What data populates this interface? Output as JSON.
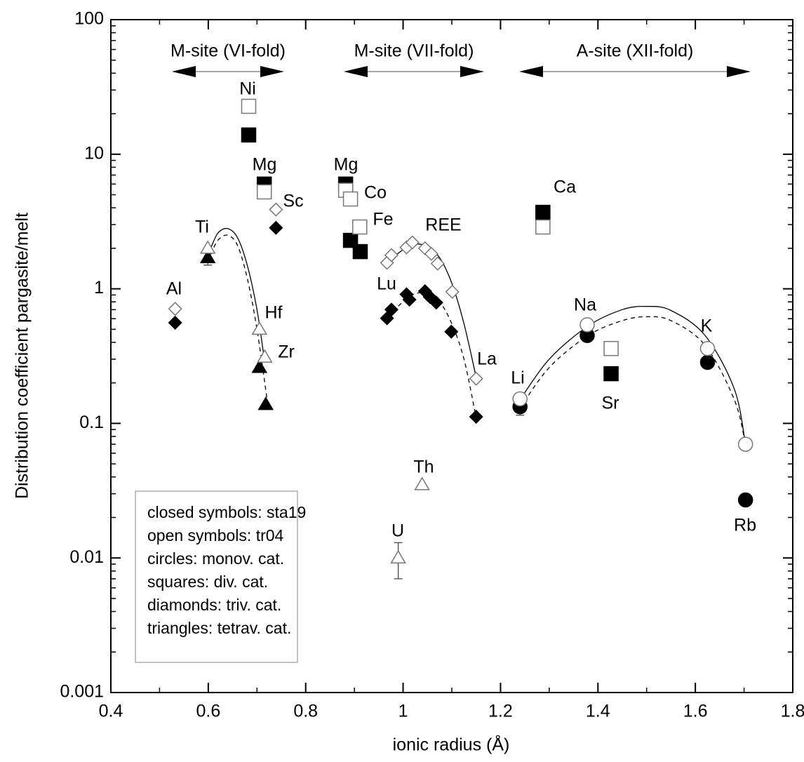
{
  "chart_data": {
    "type": "scatter",
    "x_label": "ionic radius (Å)",
    "y_label": "Distribution coefficient pargasite/melt",
    "xlim": [
      0.4,
      1.8
    ],
    "xticks": [
      0.4,
      0.6,
      0.8,
      1,
      1.2,
      1.4,
      1.6,
      1.8
    ],
    "ylim": [
      0.001,
      100
    ],
    "yticks": [
      0.001,
      0.01,
      0.1,
      1,
      10,
      100
    ],
    "ylog": true,
    "color": "#000000",
    "site_labels": [
      "M-site (VI-fold)",
      "M-site (VII-fold)",
      "A-site (XII-fold)"
    ],
    "point_labels": [
      "Ni",
      "Mg",
      "Sc",
      "Ti",
      "Al",
      "Hf",
      "Zr",
      "Mg",
      "Co",
      "Fe",
      "REE",
      "Lu",
      "La",
      "Th",
      "U",
      "Ca",
      "Li",
      "Na",
      "K",
      "Sr",
      "Rb"
    ],
    "legend_text": [
      "closed symbols: sta19",
      "open symbols: tr04",
      "circles: monov. cat.",
      "squares: div. cat.",
      "diamonds: triv. cat.",
      "triangles: tetrav. cat."
    ],
    "series": [
      {
        "marker": "square",
        "filled": true,
        "x": [
          0.683,
          0.715,
          0.882,
          0.892,
          0.912,
          1.287,
          1.427
        ],
        "values": [
          13.9,
          6.0,
          6.0,
          2.29,
          1.89,
          3.7,
          0.234
        ]
      },
      {
        "marker": "square",
        "filled": false,
        "x": [
          0.683,
          0.715,
          0.882,
          0.892,
          0.911,
          1.287,
          1.427
        ],
        "values": [
          22.7,
          5.25,
          5.4,
          4.65,
          2.88,
          2.88,
          0.36
        ]
      },
      {
        "marker": "diamond",
        "filled": true,
        "x": [
          0.532,
          0.739,
          0.967,
          0.976,
          1.007,
          1.013,
          1.045,
          1.055,
          1.068,
          1.099,
          1.15
        ],
        "values": [
          0.56,
          2.84,
          0.604,
          0.7,
          0.91,
          0.83,
          0.96,
          0.87,
          0.79,
          0.48,
          0.112
        ]
      },
      {
        "marker": "diamond",
        "filled": false,
        "x": [
          0.532,
          0.739,
          0.967,
          0.976,
          1.007,
          1.019,
          1.045,
          1.058,
          1.071,
          1.101,
          1.15
        ],
        "values": [
          0.71,
          3.88,
          1.56,
          1.78,
          2.03,
          2.21,
          2.0,
          1.82,
          1.54,
          0.95,
          0.215
        ]
      },
      {
        "marker": "triangle",
        "filled": true,
        "x": [
          0.599,
          0.705,
          0.718
        ],
        "values": [
          1.7,
          0.26,
          0.138
        ],
        "errors": [
          0.2,
          null,
          null
        ]
      },
      {
        "marker": "triangle",
        "filled": false,
        "x": [
          0.599,
          0.705,
          0.716,
          1.039,
          0.99
        ],
        "values": [
          2.0,
          0.5,
          0.31,
          0.035,
          0.01
        ],
        "errors": [
          null,
          null,
          null,
          null,
          0.003
        ]
      },
      {
        "marker": "circle",
        "filled": true,
        "x": [
          1.24,
          1.378,
          1.625,
          1.703
        ],
        "values": [
          0.133,
          0.45,
          0.284,
          0.027
        ],
        "errors": [
          0.018,
          null,
          null,
          null
        ]
      },
      {
        "marker": "circle",
        "filled": false,
        "x": [
          1.24,
          1.378,
          1.625,
          1.703
        ],
        "values": [
          0.152,
          0.54,
          0.36,
          0.07
        ]
      }
    ],
    "fits": [
      {
        "dashed": false,
        "x": [
          0.605,
          0.62,
          0.64,
          0.66,
          0.68,
          0.7,
          0.715
        ],
        "values": [
          2.0,
          2.6,
          2.8,
          2.4,
          1.5,
          0.7,
          0.3
        ]
      },
      {
        "dashed": true,
        "x": [
          0.605,
          0.62,
          0.64,
          0.66,
          0.68,
          0.7,
          0.722
        ],
        "values": [
          1.8,
          2.3,
          2.5,
          2.1,
          1.2,
          0.5,
          0.14
        ]
      },
      {
        "dashed": false,
        "x": [
          0.967,
          1.0,
          1.025,
          1.05,
          1.075,
          1.1,
          1.125,
          1.15
        ],
        "values": [
          1.58,
          1.95,
          2.15,
          2.05,
          1.7,
          1.1,
          0.55,
          0.22
        ]
      },
      {
        "dashed": true,
        "x": [
          0.967,
          1.0,
          1.025,
          1.05,
          1.075,
          1.1,
          1.125,
          1.15
        ],
        "values": [
          0.62,
          0.8,
          0.92,
          0.92,
          0.8,
          0.55,
          0.3,
          0.11
        ]
      },
      {
        "dashed": false,
        "x": [
          1.24,
          1.3,
          1.38,
          1.45,
          1.5,
          1.55,
          1.62,
          1.68,
          1.703
        ],
        "values": [
          0.15,
          0.3,
          0.53,
          0.7,
          0.74,
          0.69,
          0.45,
          0.18,
          0.07
        ]
      },
      {
        "dashed": true,
        "x": [
          1.24,
          1.3,
          1.38,
          1.45,
          1.5,
          1.55,
          1.62,
          1.68,
          1.703
        ],
        "values": [
          0.13,
          0.26,
          0.45,
          0.58,
          0.62,
          0.58,
          0.38,
          0.15,
          0.07
        ]
      }
    ]
  }
}
